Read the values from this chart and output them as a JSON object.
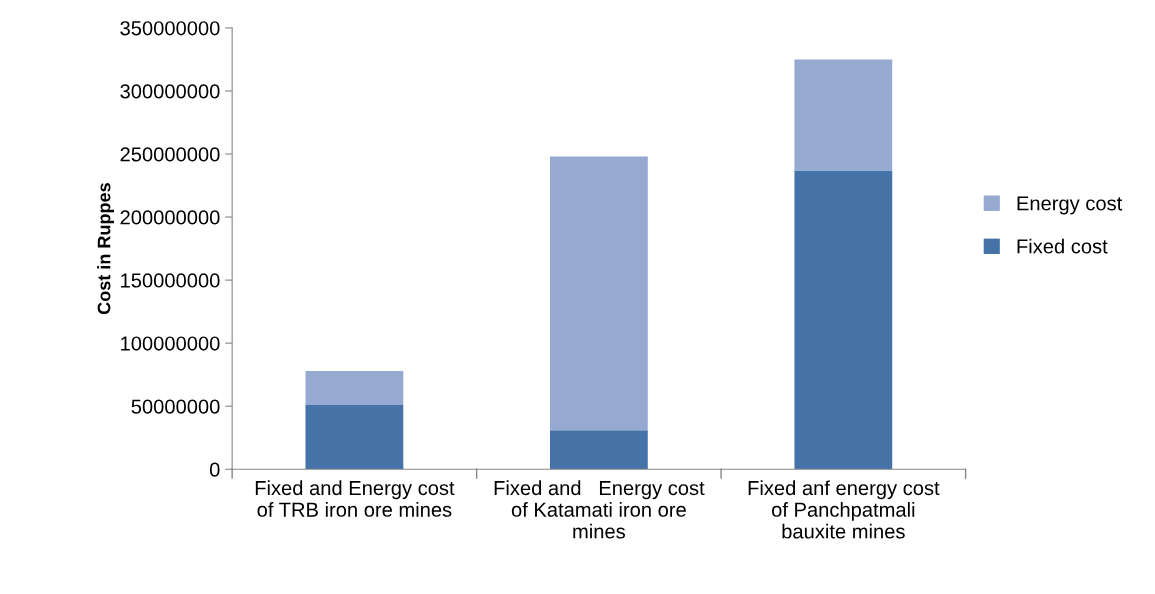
{
  "chart_data": {
    "type": "bar",
    "stacked": true,
    "ylabel": "Cost in Ruppes",
    "categories": [
      "Fixed and Energy cost\nof TRB iron ore mines",
      "Fixed and   Energy cost\nof Katamati iron ore\nmines",
      "Fixed anf energy cost\nof Panchpatmali\nbauxite mines"
    ],
    "series": [
      {
        "name": "Fixed cost",
        "color": "#4572a7",
        "values": [
          51000000,
          31000000,
          237000000
        ]
      },
      {
        "name": "Energy cost",
        "color": "#95a9d1",
        "values": [
          27000000,
          217000000,
          88000000
        ]
      }
    ],
    "ylim": [
      0,
      350000000
    ],
    "yticks": [
      0,
      50000000,
      100000000,
      150000000,
      200000000,
      250000000,
      300000000,
      350000000
    ],
    "grid": false,
    "legend": "right"
  }
}
